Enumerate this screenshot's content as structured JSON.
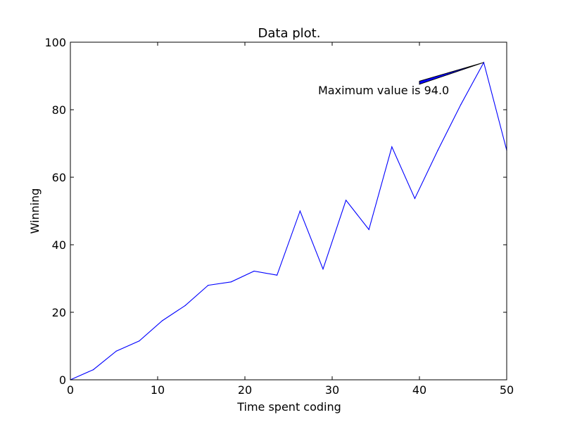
{
  "chart_data": {
    "type": "line",
    "title": "Data plot.",
    "xlabel": "Time spent coding",
    "ylabel": "Winning",
    "xlim": [
      0,
      50
    ],
    "ylim": [
      0,
      100
    ],
    "xticks": [
      "0",
      "10",
      "20",
      "30",
      "40",
      "50"
    ],
    "yticks": [
      "0",
      "20",
      "40",
      "60",
      "80",
      "100"
    ],
    "grid": false,
    "legend": "none",
    "line_color": "#0000ff",
    "series": [
      {
        "x": [
          0,
          2.63,
          5.26,
          7.89,
          10.53,
          13.16,
          15.79,
          18.42,
          21.05,
          23.68,
          26.32,
          28.95,
          31.58,
          34.21,
          36.84,
          39.47,
          42.11,
          44.74,
          47.37,
          50
        ],
        "values": [
          0,
          3,
          8.5,
          11.5,
          17.5,
          22,
          28,
          29,
          32.2,
          31,
          50,
          32.8,
          53.2,
          44.5,
          69,
          53.7,
          68,
          81.5,
          94,
          68
        ]
      }
    ],
    "annotation": {
      "text": "Maximum value is 94.0",
      "point": [
        47.37,
        94.0
      ],
      "text_position": [
        40,
        88
      ],
      "arrow_color": "#0000ff"
    }
  }
}
